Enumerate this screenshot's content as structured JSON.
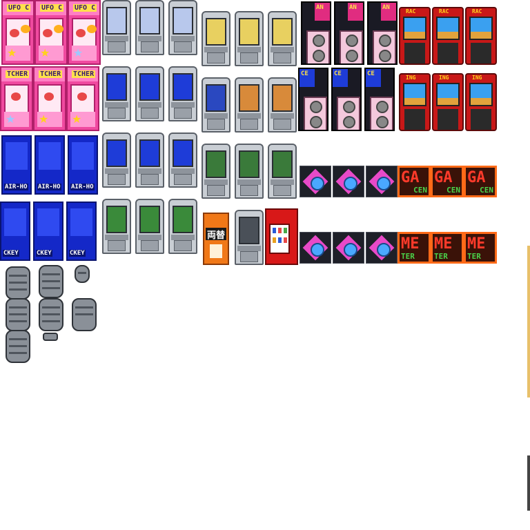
{
  "sheet": {
    "ufo_label": "UFO C",
    "catcher_label": "TCHER",
    "hockey_label_a": "AIR-HO",
    "hockey_label_b": "CKEY",
    "music_label": "AN",
    "music_label_2": "CE",
    "race_label_top": "RAC",
    "race_label_bottom": "ING",
    "neon_big_1": "GA",
    "neon_small_1": "CEN",
    "neon_big_2": "ME",
    "neon_small_2": "TER",
    "change_machine_label": "両替"
  },
  "colors": {
    "ufo_pink": "#f04aa0",
    "cab_grey": "#c9ced4",
    "screen_blue": "#1e3cd8",
    "screen_green": "#3a7a3a",
    "race_red": "#c81818",
    "neon_orange": "#ff6a18",
    "tile_magenta": "#e84ac8"
  }
}
